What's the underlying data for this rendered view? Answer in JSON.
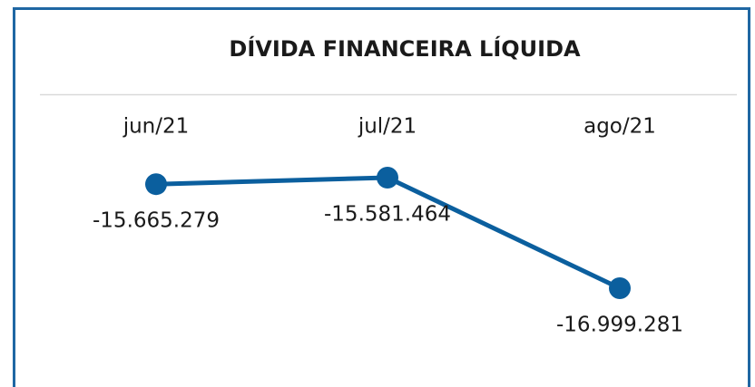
{
  "chart_data": {
    "type": "line",
    "title": "DÍVIDA FINANCEIRA LÍQUIDA",
    "categories": [
      "jun/21",
      "jul/21",
      "ago/21"
    ],
    "series": [
      {
        "name": null,
        "color": "#0b5f9e",
        "values": [
          -15665279,
          -15581464,
          -16999281
        ],
        "value_labels": [
          "-15.665.279",
          "-15.581.464",
          "-16.999.281"
        ]
      }
    ]
  }
}
